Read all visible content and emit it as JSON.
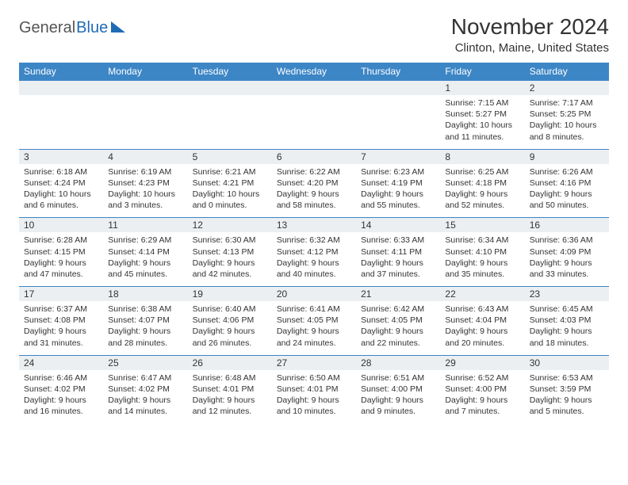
{
  "logo": {
    "part1": "General",
    "part2": "Blue"
  },
  "title": "November 2024",
  "location": "Clinton, Maine, United States",
  "colors": {
    "header_bg": "#3d86c6",
    "header_fg": "#ffffff",
    "daynum_bg": "#eceff1",
    "rule": "#3d86c6",
    "logo_accent": "#1f6bb5"
  },
  "typography": {
    "title_fontsize": 28,
    "location_fontsize": 15,
    "dayheader_fontsize": 12,
    "cell_fontsize": 10.5
  },
  "day_headers": [
    "Sunday",
    "Monday",
    "Tuesday",
    "Wednesday",
    "Thursday",
    "Friday",
    "Saturday"
  ],
  "weeks": [
    [
      null,
      null,
      null,
      null,
      null,
      {
        "n": "1",
        "sr": "Sunrise: 7:15 AM",
        "ss": "Sunset: 5:27 PM",
        "dl": "Daylight: 10 hours and 11 minutes."
      },
      {
        "n": "2",
        "sr": "Sunrise: 7:17 AM",
        "ss": "Sunset: 5:25 PM",
        "dl": "Daylight: 10 hours and 8 minutes."
      }
    ],
    [
      {
        "n": "3",
        "sr": "Sunrise: 6:18 AM",
        "ss": "Sunset: 4:24 PM",
        "dl": "Daylight: 10 hours and 6 minutes."
      },
      {
        "n": "4",
        "sr": "Sunrise: 6:19 AM",
        "ss": "Sunset: 4:23 PM",
        "dl": "Daylight: 10 hours and 3 minutes."
      },
      {
        "n": "5",
        "sr": "Sunrise: 6:21 AM",
        "ss": "Sunset: 4:21 PM",
        "dl": "Daylight: 10 hours and 0 minutes."
      },
      {
        "n": "6",
        "sr": "Sunrise: 6:22 AM",
        "ss": "Sunset: 4:20 PM",
        "dl": "Daylight: 9 hours and 58 minutes."
      },
      {
        "n": "7",
        "sr": "Sunrise: 6:23 AM",
        "ss": "Sunset: 4:19 PM",
        "dl": "Daylight: 9 hours and 55 minutes."
      },
      {
        "n": "8",
        "sr": "Sunrise: 6:25 AM",
        "ss": "Sunset: 4:18 PM",
        "dl": "Daylight: 9 hours and 52 minutes."
      },
      {
        "n": "9",
        "sr": "Sunrise: 6:26 AM",
        "ss": "Sunset: 4:16 PM",
        "dl": "Daylight: 9 hours and 50 minutes."
      }
    ],
    [
      {
        "n": "10",
        "sr": "Sunrise: 6:28 AM",
        "ss": "Sunset: 4:15 PM",
        "dl": "Daylight: 9 hours and 47 minutes."
      },
      {
        "n": "11",
        "sr": "Sunrise: 6:29 AM",
        "ss": "Sunset: 4:14 PM",
        "dl": "Daylight: 9 hours and 45 minutes."
      },
      {
        "n": "12",
        "sr": "Sunrise: 6:30 AM",
        "ss": "Sunset: 4:13 PM",
        "dl": "Daylight: 9 hours and 42 minutes."
      },
      {
        "n": "13",
        "sr": "Sunrise: 6:32 AM",
        "ss": "Sunset: 4:12 PM",
        "dl": "Daylight: 9 hours and 40 minutes."
      },
      {
        "n": "14",
        "sr": "Sunrise: 6:33 AM",
        "ss": "Sunset: 4:11 PM",
        "dl": "Daylight: 9 hours and 37 minutes."
      },
      {
        "n": "15",
        "sr": "Sunrise: 6:34 AM",
        "ss": "Sunset: 4:10 PM",
        "dl": "Daylight: 9 hours and 35 minutes."
      },
      {
        "n": "16",
        "sr": "Sunrise: 6:36 AM",
        "ss": "Sunset: 4:09 PM",
        "dl": "Daylight: 9 hours and 33 minutes."
      }
    ],
    [
      {
        "n": "17",
        "sr": "Sunrise: 6:37 AM",
        "ss": "Sunset: 4:08 PM",
        "dl": "Daylight: 9 hours and 31 minutes."
      },
      {
        "n": "18",
        "sr": "Sunrise: 6:38 AM",
        "ss": "Sunset: 4:07 PM",
        "dl": "Daylight: 9 hours and 28 minutes."
      },
      {
        "n": "19",
        "sr": "Sunrise: 6:40 AM",
        "ss": "Sunset: 4:06 PM",
        "dl": "Daylight: 9 hours and 26 minutes."
      },
      {
        "n": "20",
        "sr": "Sunrise: 6:41 AM",
        "ss": "Sunset: 4:05 PM",
        "dl": "Daylight: 9 hours and 24 minutes."
      },
      {
        "n": "21",
        "sr": "Sunrise: 6:42 AM",
        "ss": "Sunset: 4:05 PM",
        "dl": "Daylight: 9 hours and 22 minutes."
      },
      {
        "n": "22",
        "sr": "Sunrise: 6:43 AM",
        "ss": "Sunset: 4:04 PM",
        "dl": "Daylight: 9 hours and 20 minutes."
      },
      {
        "n": "23",
        "sr": "Sunrise: 6:45 AM",
        "ss": "Sunset: 4:03 PM",
        "dl": "Daylight: 9 hours and 18 minutes."
      }
    ],
    [
      {
        "n": "24",
        "sr": "Sunrise: 6:46 AM",
        "ss": "Sunset: 4:02 PM",
        "dl": "Daylight: 9 hours and 16 minutes."
      },
      {
        "n": "25",
        "sr": "Sunrise: 6:47 AM",
        "ss": "Sunset: 4:02 PM",
        "dl": "Daylight: 9 hours and 14 minutes."
      },
      {
        "n": "26",
        "sr": "Sunrise: 6:48 AM",
        "ss": "Sunset: 4:01 PM",
        "dl": "Daylight: 9 hours and 12 minutes."
      },
      {
        "n": "27",
        "sr": "Sunrise: 6:50 AM",
        "ss": "Sunset: 4:01 PM",
        "dl": "Daylight: 9 hours and 10 minutes."
      },
      {
        "n": "28",
        "sr": "Sunrise: 6:51 AM",
        "ss": "Sunset: 4:00 PM",
        "dl": "Daylight: 9 hours and 9 minutes."
      },
      {
        "n": "29",
        "sr": "Sunrise: 6:52 AM",
        "ss": "Sunset: 4:00 PM",
        "dl": "Daylight: 9 hours and 7 minutes."
      },
      {
        "n": "30",
        "sr": "Sunrise: 6:53 AM",
        "ss": "Sunset: 3:59 PM",
        "dl": "Daylight: 9 hours and 5 minutes."
      }
    ]
  ]
}
